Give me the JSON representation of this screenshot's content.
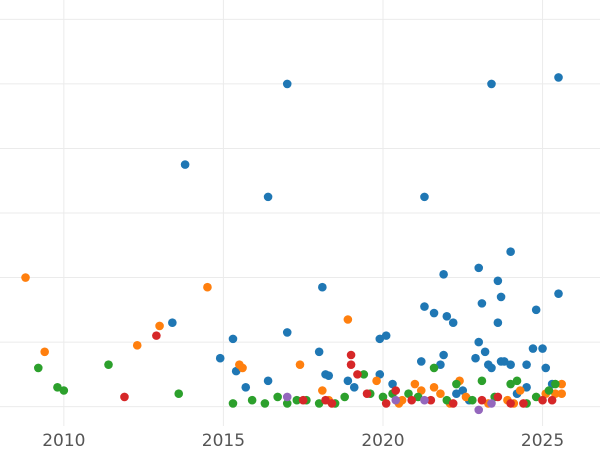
{
  "chart_data": {
    "type": "scatter",
    "title": "",
    "xlabel": "",
    "ylabel": "",
    "xlim": [
      2008.0,
      2026.8
    ],
    "ylim": [
      -0.3,
      6.3
    ],
    "x_ticks": [
      2010,
      2015,
      2020,
      2025
    ],
    "y_grid_values": [
      0,
      1,
      2,
      3,
      4,
      5,
      6
    ],
    "grid": true,
    "legend": "none",
    "colors": {
      "blue": "#1f77b4",
      "orange": "#ff7f0e",
      "green": "#2ca02c",
      "red": "#d62728",
      "purple": "#9467bd"
    },
    "series": [
      {
        "color": "blue",
        "points": [
          [
            2013.4,
            1.3
          ],
          [
            2013.8,
            3.75
          ],
          [
            2014.9,
            0.75
          ],
          [
            2015.3,
            1.05
          ],
          [
            2015.4,
            0.55
          ],
          [
            2015.7,
            0.3
          ],
          [
            2016.4,
            3.25
          ],
          [
            2016.4,
            0.4
          ],
          [
            2017.0,
            5.0
          ],
          [
            2017.0,
            1.15
          ],
          [
            2018.0,
            0.85
          ],
          [
            2018.1,
            1.85
          ],
          [
            2018.2,
            0.5
          ],
          [
            2018.3,
            0.48
          ],
          [
            2018.9,
            0.4
          ],
          [
            2019.1,
            0.3
          ],
          [
            2019.9,
            1.05
          ],
          [
            2019.9,
            0.5
          ],
          [
            2020.1,
            1.1
          ],
          [
            2020.3,
            0.35
          ],
          [
            2021.2,
            0.7
          ],
          [
            2021.3,
            3.25
          ],
          [
            2021.3,
            1.55
          ],
          [
            2021.6,
            1.45
          ],
          [
            2021.8,
            0.65
          ],
          [
            2021.9,
            2.05
          ],
          [
            2021.9,
            0.8
          ],
          [
            2022.0,
            1.4
          ],
          [
            2022.2,
            1.3
          ],
          [
            2022.3,
            0.2
          ],
          [
            2022.5,
            0.25
          ],
          [
            2022.9,
            0.75
          ],
          [
            2023.0,
            2.15
          ],
          [
            2023.0,
            1.0
          ],
          [
            2023.1,
            1.6
          ],
          [
            2023.2,
            0.85
          ],
          [
            2023.3,
            0.65
          ],
          [
            2023.4,
            0.6
          ],
          [
            2023.4,
            5.0
          ],
          [
            2023.6,
            1.95
          ],
          [
            2023.6,
            1.3
          ],
          [
            2023.7,
            1.7
          ],
          [
            2023.7,
            0.7
          ],
          [
            2023.8,
            0.7
          ],
          [
            2024.0,
            2.4
          ],
          [
            2024.0,
            0.65
          ],
          [
            2024.5,
            0.3
          ],
          [
            2024.5,
            0.65
          ],
          [
            2024.7,
            0.9
          ],
          [
            2024.8,
            1.5
          ],
          [
            2025.0,
            0.9
          ],
          [
            2025.1,
            0.6
          ],
          [
            2025.3,
            0.35
          ],
          [
            2025.5,
            1.75
          ],
          [
            2025.5,
            5.1
          ],
          [
            2024.2,
            0.2
          ],
          [
            2022.7,
            0.1
          ]
        ]
      },
      {
        "color": "orange",
        "points": [
          [
            2008.8,
            2.0
          ],
          [
            2009.4,
            0.85
          ],
          [
            2012.3,
            0.95
          ],
          [
            2013.0,
            1.25
          ],
          [
            2014.5,
            1.85
          ],
          [
            2015.5,
            0.65
          ],
          [
            2015.6,
            0.6
          ],
          [
            2017.4,
            0.65
          ],
          [
            2018.1,
            0.25
          ],
          [
            2018.3,
            0.1
          ],
          [
            2018.9,
            1.35
          ],
          [
            2019.8,
            0.4
          ],
          [
            2020.5,
            0.05
          ],
          [
            2020.6,
            0.1
          ],
          [
            2021.0,
            0.35
          ],
          [
            2021.2,
            0.25
          ],
          [
            2021.6,
            0.3
          ],
          [
            2021.8,
            0.2
          ],
          [
            2022.1,
            0.05
          ],
          [
            2022.4,
            0.4
          ],
          [
            2022.6,
            0.15
          ],
          [
            2023.3,
            0.05
          ],
          [
            2023.9,
            0.1
          ],
          [
            2024.1,
            0.05
          ],
          [
            2024.3,
            0.25
          ],
          [
            2025.1,
            0.2
          ],
          [
            2025.4,
            0.2
          ],
          [
            2025.6,
            0.35
          ],
          [
            2025.6,
            0.2
          ]
        ]
      },
      {
        "color": "green",
        "points": [
          [
            2009.2,
            0.6
          ],
          [
            2009.8,
            0.3
          ],
          [
            2010.0,
            0.25
          ],
          [
            2011.4,
            0.65
          ],
          [
            2013.6,
            0.2
          ],
          [
            2015.3,
            0.05
          ],
          [
            2015.9,
            0.1
          ],
          [
            2016.3,
            0.05
          ],
          [
            2016.7,
            0.15
          ],
          [
            2017.0,
            0.05
          ],
          [
            2017.3,
            0.1
          ],
          [
            2017.6,
            0.1
          ],
          [
            2018.0,
            0.05
          ],
          [
            2018.5,
            0.05
          ],
          [
            2018.8,
            0.15
          ],
          [
            2019.4,
            0.5
          ],
          [
            2019.6,
            0.2
          ],
          [
            2020.0,
            0.15
          ],
          [
            2020.3,
            0.2
          ],
          [
            2020.8,
            0.2
          ],
          [
            2021.1,
            0.15
          ],
          [
            2021.6,
            0.6
          ],
          [
            2022.0,
            0.1
          ],
          [
            2022.3,
            0.35
          ],
          [
            2022.8,
            0.1
          ],
          [
            2023.1,
            0.4
          ],
          [
            2023.5,
            0.15
          ],
          [
            2024.0,
            0.35
          ],
          [
            2024.2,
            0.4
          ],
          [
            2024.5,
            0.05
          ],
          [
            2024.8,
            0.15
          ],
          [
            2025.2,
            0.25
          ],
          [
            2025.4,
            0.35
          ]
        ]
      },
      {
        "color": "red",
        "points": [
          [
            2011.9,
            0.15
          ],
          [
            2012.9,
            1.1
          ],
          [
            2017.5,
            0.1
          ],
          [
            2018.2,
            0.1
          ],
          [
            2018.4,
            0.05
          ],
          [
            2019.0,
            0.8
          ],
          [
            2019.0,
            0.65
          ],
          [
            2019.2,
            0.5
          ],
          [
            2019.5,
            0.2
          ],
          [
            2020.1,
            0.05
          ],
          [
            2020.4,
            0.25
          ],
          [
            2020.9,
            0.1
          ],
          [
            2021.5,
            0.1
          ],
          [
            2022.2,
            0.05
          ],
          [
            2023.1,
            0.1
          ],
          [
            2023.6,
            0.15
          ],
          [
            2024.0,
            0.05
          ],
          [
            2024.4,
            0.05
          ],
          [
            2025.0,
            0.1
          ],
          [
            2025.3,
            0.1
          ]
        ]
      },
      {
        "color": "purple",
        "points": [
          [
            2017.0,
            0.15
          ],
          [
            2020.4,
            0.1
          ],
          [
            2021.3,
            0.1
          ],
          [
            2023.0,
            -0.05
          ],
          [
            2023.4,
            0.05
          ]
        ]
      }
    ]
  }
}
